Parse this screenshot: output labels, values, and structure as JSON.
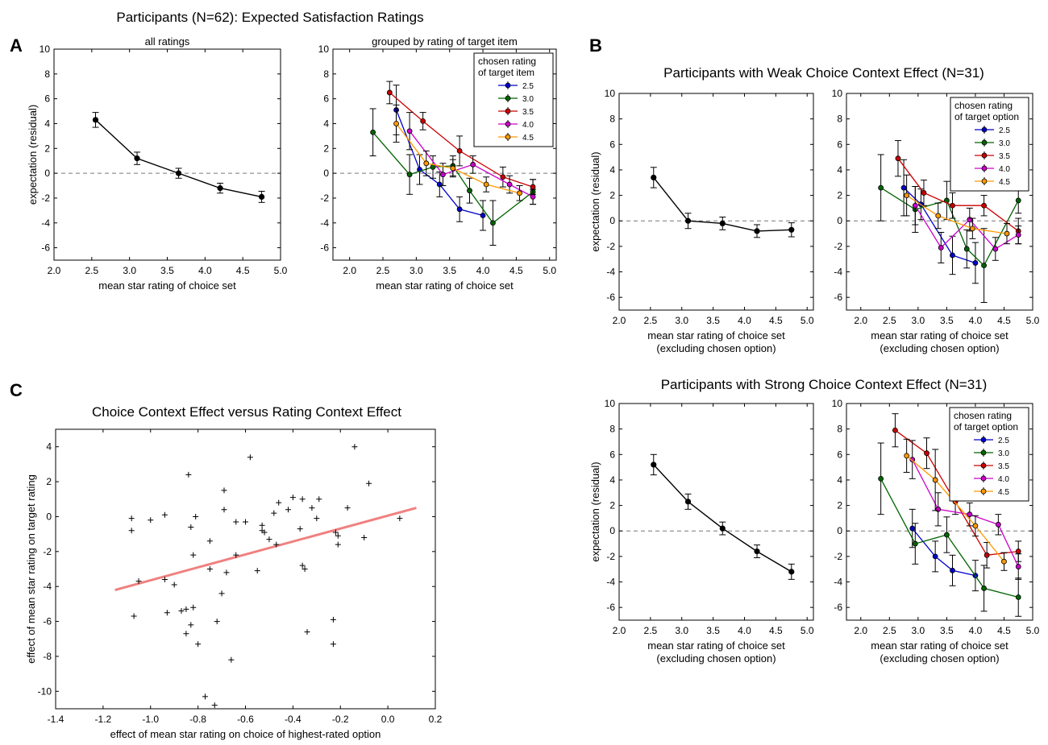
{
  "figure": {
    "suptitle_A": "Participants (N=62): Expected Satisfaction Ratings",
    "panel_letters": [
      "A",
      "B",
      "C"
    ],
    "title_B_weak": "Participants with Weak Choice Context Effect (N=31)",
    "title_B_strong": "Participants with Strong Choice Context Effect (N=31)",
    "title_C": "Choice Context Effect versus Rating Context Effect"
  },
  "legend": {
    "title_A": [
      "chosen rating",
      "of target item"
    ],
    "title_B": [
      "chosen rating",
      "of target option"
    ],
    "labels": [
      "2.5",
      "3.0",
      "3.5",
      "4.0",
      "4.5"
    ],
    "colors": [
      "#0000cc",
      "#006400",
      "#cc0000",
      "#cc00cc",
      "#ff9900"
    ]
  },
  "chart_data": [
    {
      "id": "A1",
      "type": "line",
      "subtitle": "all ratings",
      "xlabel": "mean star rating of choice set",
      "ylabel": "expectation (residual)",
      "xlim": [
        2.0,
        5.0
      ],
      "ylim": [
        -7,
        10
      ],
      "xticks": [
        2.0,
        2.5,
        3.0,
        3.5,
        4.0,
        4.5,
        5.0
      ],
      "yticks": [
        -6,
        -4,
        -2,
        0,
        2,
        4,
        6,
        8,
        10
      ],
      "reference_line": 0,
      "series": [
        {
          "color": "#000000",
          "x": [
            2.55,
            3.1,
            3.65,
            4.2,
            4.75
          ],
          "y": [
            4.3,
            1.2,
            0.0,
            -1.2,
            -1.9
          ],
          "err": [
            0.6,
            0.5,
            0.4,
            0.4,
            0.45
          ]
        }
      ]
    },
    {
      "id": "A2",
      "type": "line",
      "subtitle": "grouped by rating of target item",
      "xlabel": "mean star rating of choice set",
      "ylabel": "",
      "xlim": [
        1.75,
        5.1
      ],
      "ylim": [
        -7,
        10
      ],
      "xticks": [
        2.0,
        2.5,
        3.0,
        3.5,
        4.0,
        4.5,
        5.0
      ],
      "yticks": [
        -6,
        -4,
        -2,
        0,
        2,
        4,
        6,
        8,
        10
      ],
      "reference_line": 0,
      "legend_position": "upper right",
      "series": [
        {
          "name": "2.5",
          "color": "#0000cc",
          "x": [
            2.7,
            3.05,
            3.35,
            3.65,
            4.0
          ],
          "y": [
            5.1,
            0.3,
            -0.9,
            -2.9,
            -3.4
          ],
          "err": [
            2.0,
            1.2,
            1.0,
            1.0,
            1.2
          ]
        },
        {
          "name": "3.0",
          "color": "#006400",
          "x": [
            2.35,
            2.9,
            3.25,
            3.55,
            3.8,
            4.15,
            4.75
          ],
          "y": [
            3.3,
            -0.1,
            0.5,
            0.6,
            -1.4,
            -4.0,
            -1.5
          ],
          "err": [
            1.9,
            1.6,
            0.9,
            0.8,
            1.0,
            1.8,
            1.0
          ]
        },
        {
          "name": "3.5",
          "color": "#cc0000",
          "x": [
            2.6,
            3.1,
            3.65,
            4.3,
            4.75
          ],
          "y": [
            6.5,
            4.2,
            1.8,
            -0.3,
            -1.1
          ],
          "err": [
            0.9,
            0.7,
            1.2,
            0.8,
            0.6
          ]
        },
        {
          "name": "4.0",
          "color": "#cc00cc",
          "x": [
            2.9,
            3.4,
            3.85,
            4.4,
            4.75
          ],
          "y": [
            3.4,
            -0.1,
            0.7,
            -0.9,
            -1.9
          ],
          "err": [
            1.5,
            0.9,
            0.7,
            0.7,
            0.6
          ]
        },
        {
          "name": "4.5",
          "color": "#ff9900",
          "x": [
            2.7,
            3.15,
            3.55,
            4.05,
            4.55
          ],
          "y": [
            4.0,
            0.8,
            0.4,
            -0.9,
            -1.6
          ],
          "err": [
            1.5,
            1.0,
            0.7,
            0.6,
            0.6
          ]
        }
      ]
    },
    {
      "id": "B-weak-1",
      "type": "line",
      "xlabel": [
        "mean star rating of choice set",
        "(excluding chosen option)"
      ],
      "ylabel": "expectation (residual)",
      "xlim": [
        2.0,
        5.1
      ],
      "ylim": [
        -7,
        10
      ],
      "xticks": [
        2.0,
        2.5,
        3.0,
        3.5,
        4.0,
        4.5,
        5.0
      ],
      "yticks": [
        -6,
        -4,
        -2,
        0,
        2,
        4,
        6,
        8,
        10
      ],
      "reference_line": 0,
      "series": [
        {
          "color": "#000000",
          "x": [
            2.55,
            3.1,
            3.65,
            4.2,
            4.75
          ],
          "y": [
            3.4,
            0.0,
            -0.2,
            -0.8,
            -0.7
          ],
          "err": [
            0.8,
            0.6,
            0.5,
            0.5,
            0.55
          ]
        }
      ]
    },
    {
      "id": "B-weak-2",
      "type": "line",
      "xlabel": [
        "mean star rating of choice set",
        "(excluding chosen option)"
      ],
      "ylabel": "",
      "xlim": [
        1.75,
        5.0
      ],
      "ylim": [
        -7,
        10
      ],
      "xticks": [
        2.0,
        2.5,
        3.0,
        3.5,
        4.0,
        4.5,
        5.0
      ],
      "yticks": [
        -6,
        -4,
        -2,
        0,
        2,
        4,
        6,
        8,
        10
      ],
      "reference_line": 0,
      "legend_position": "upper right",
      "series": [
        {
          "name": "2.5",
          "color": "#0000cc",
          "x": [
            2.75,
            3.05,
            3.6,
            4.0
          ],
          "y": [
            2.6,
            1.3,
            -2.7,
            -3.3
          ],
          "err": [
            2.2,
            1.2,
            1.5,
            1.6
          ]
        },
        {
          "name": "3.0",
          "color": "#006400",
          "x": [
            2.35,
            2.95,
            3.5,
            3.85,
            4.15,
            4.75
          ],
          "y": [
            2.6,
            0.9,
            1.6,
            -2.2,
            -3.5,
            1.6
          ],
          "err": [
            2.6,
            1.8,
            1.5,
            1.5,
            2.9,
            1.0
          ]
        },
        {
          "name": "3.5",
          "color": "#cc0000",
          "x": [
            2.65,
            3.1,
            3.6,
            4.15,
            4.75
          ],
          "y": [
            4.9,
            2.2,
            1.2,
            1.2,
            -0.8
          ],
          "err": [
            1.4,
            1.0,
            1.0,
            0.8,
            1.0
          ]
        },
        {
          "name": "4.0",
          "color": "#cc00cc",
          "x": [
            2.95,
            3.4,
            3.9,
            4.35,
            4.75
          ],
          "y": [
            1.2,
            -2.1,
            0.1,
            -2.2,
            -1.1
          ],
          "err": [
            1.5,
            1.2,
            0.9,
            0.9,
            0.7
          ]
        },
        {
          "name": "4.5",
          "color": "#ff9900",
          "x": [
            2.8,
            3.35,
            3.95,
            4.55
          ],
          "y": [
            2.0,
            0.4,
            -0.6,
            -1.0
          ],
          "err": [
            1.6,
            1.0,
            0.8,
            0.8
          ]
        }
      ]
    },
    {
      "id": "B-strong-1",
      "type": "line",
      "xlabel": [
        "mean star rating of choice set",
        "(excluding chosen option)"
      ],
      "ylabel": "expectation (residual)",
      "xlim": [
        2.0,
        5.1
      ],
      "ylim": [
        -7,
        10
      ],
      "xticks": [
        2.0,
        2.5,
        3.0,
        3.5,
        4.0,
        4.5,
        5.0
      ],
      "yticks": [
        -6,
        -4,
        -2,
        0,
        2,
        4,
        6,
        8,
        10
      ],
      "reference_line": 0,
      "series": [
        {
          "color": "#000000",
          "x": [
            2.55,
            3.1,
            3.65,
            4.2,
            4.75
          ],
          "y": [
            5.2,
            2.3,
            0.2,
            -1.6,
            -3.2
          ],
          "err": [
            0.8,
            0.6,
            0.5,
            0.5,
            0.6
          ]
        }
      ]
    },
    {
      "id": "B-strong-2",
      "type": "line",
      "xlabel": [
        "mean star rating of choice set",
        "(excluding chosen option)"
      ],
      "ylabel": "",
      "xlim": [
        1.75,
        5.0
      ],
      "ylim": [
        -7,
        10
      ],
      "xticks": [
        2.0,
        2.5,
        3.0,
        3.5,
        4.0,
        4.5,
        5.0
      ],
      "yticks": [
        -6,
        -4,
        -2,
        0,
        2,
        4,
        6,
        8,
        10
      ],
      "reference_line": 0,
      "legend_position": "upper right",
      "series": [
        {
          "name": "2.5",
          "color": "#0000cc",
          "x": [
            2.9,
            3.3,
            3.6,
            4.0
          ],
          "y": [
            0.2,
            -2.0,
            -3.1,
            -3.5
          ],
          "err": [
            1.5,
            1.2,
            1.2,
            1.2
          ]
        },
        {
          "name": "3.0",
          "color": "#006400",
          "x": [
            2.35,
            2.95,
            3.5,
            4.15,
            4.75
          ],
          "y": [
            4.1,
            -1.0,
            -0.3,
            -4.5,
            -5.2
          ],
          "err": [
            2.8,
            1.6,
            1.4,
            1.8,
            1.5
          ]
        },
        {
          "name": "3.5",
          "color": "#cc0000",
          "x": [
            2.6,
            3.15,
            3.65,
            4.2,
            4.75
          ],
          "y": [
            7.9,
            6.1,
            2.3,
            -1.9,
            -1.6
          ],
          "err": [
            1.3,
            1.2,
            1.0,
            1.0,
            0.8
          ]
        },
        {
          "name": "4.0",
          "color": "#cc00cc",
          "x": [
            2.9,
            3.35,
            3.9,
            4.4,
            4.75
          ],
          "y": [
            5.6,
            1.7,
            1.3,
            0.5,
            -2.8
          ],
          "err": [
            1.5,
            1.3,
            0.9,
            0.8,
            1.0
          ]
        },
        {
          "name": "4.5",
          "color": "#ff9900",
          "x": [
            2.8,
            3.3,
            4.0,
            4.5
          ],
          "y": [
            5.9,
            4.0,
            0.4,
            -2.4
          ],
          "err": [
            1.3,
            2.4,
            0.8,
            0.7
          ]
        }
      ]
    },
    {
      "id": "C",
      "type": "scatter",
      "xlabel": "effect of mean star rating on choice of highest-rated option",
      "ylabel": "effect of mean star rating on target rating",
      "xlim": [
        -1.4,
        0.2
      ],
      "ylim": [
        -11,
        5
      ],
      "xticks": [
        -1.4,
        -1.2,
        -1.0,
        -0.8,
        -0.6,
        -0.4,
        -0.2,
        0.0,
        0.2
      ],
      "yticks": [
        -10,
        -8,
        -6,
        -4,
        -2,
        0,
        2,
        4
      ],
      "marker": "+",
      "fit_line": {
        "color": "#f08080",
        "x": [
          -1.15,
          0.12
        ],
        "y": [
          -4.2,
          0.5
        ]
      },
      "points": [
        [
          -1.08,
          -0.1
        ],
        [
          -1.08,
          -0.8
        ],
        [
          -1.07,
          -5.7
        ],
        [
          -1.05,
          -3.7
        ],
        [
          -1.0,
          -0.2
        ],
        [
          -0.94,
          0.1
        ],
        [
          -0.94,
          -3.6
        ],
        [
          -0.93,
          -5.5
        ],
        [
          -0.9,
          -3.9
        ],
        [
          -0.87,
          -5.4
        ],
        [
          -0.85,
          -5.3
        ],
        [
          -0.85,
          -6.7
        ],
        [
          -0.84,
          2.4
        ],
        [
          -0.83,
          -0.6
        ],
        [
          -0.83,
          -6.2
        ],
        [
          -0.82,
          -5.2
        ],
        [
          -0.82,
          -2.2
        ],
        [
          -0.81,
          0.0
        ],
        [
          -0.8,
          -7.3
        ],
        [
          -0.77,
          -10.3
        ],
        [
          -0.75,
          -1.4
        ],
        [
          -0.75,
          -3.0
        ],
        [
          -0.73,
          -10.8
        ],
        [
          -0.72,
          -6.0
        ],
        [
          -0.7,
          -4.4
        ],
        [
          -0.69,
          0.4
        ],
        [
          -0.69,
          1.5
        ],
        [
          -0.68,
          -3.2
        ],
        [
          -0.66,
          -8.2
        ],
        [
          -0.64,
          -0.3
        ],
        [
          -0.64,
          -2.2
        ],
        [
          -0.6,
          -0.3
        ],
        [
          -0.58,
          3.4
        ],
        [
          -0.55,
          -3.1
        ],
        [
          -0.53,
          -0.5
        ],
        [
          -0.53,
          -0.8
        ],
        [
          -0.52,
          -0.9
        ],
        [
          -0.5,
          -1.3
        ],
        [
          -0.48,
          0.2
        ],
        [
          -0.47,
          -1.6
        ],
        [
          -0.46,
          0.8
        ],
        [
          -0.42,
          0.4
        ],
        [
          -0.4,
          1.1
        ],
        [
          -0.37,
          -0.7
        ],
        [
          -0.36,
          1.0
        ],
        [
          -0.36,
          -2.8
        ],
        [
          -0.35,
          -3.0
        ],
        [
          -0.34,
          -6.6
        ],
        [
          -0.32,
          0.5
        ],
        [
          -0.3,
          -0.1
        ],
        [
          -0.29,
          1.0
        ],
        [
          -0.23,
          -5.9
        ],
        [
          -0.23,
          -7.3
        ],
        [
          -0.22,
          -0.9
        ],
        [
          -0.21,
          -1.1
        ],
        [
          -0.21,
          -1.6
        ],
        [
          -0.17,
          0.5
        ],
        [
          -0.14,
          4.0
        ],
        [
          -0.1,
          -1.2
        ],
        [
          -0.08,
          1.9
        ],
        [
          0.05,
          -0.1
        ]
      ]
    }
  ]
}
